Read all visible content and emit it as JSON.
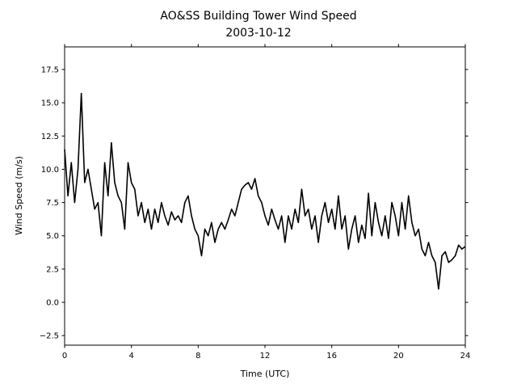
{
  "chart_data": {
    "type": "line",
    "title": "AO&SS Building Tower Wind Speed",
    "subtitle": "2003-10-12",
    "x_label": "Time (UTC)",
    "y_label": "Wind Speed (m/s)",
    "xlim": [
      0,
      24
    ],
    "xticks": [
      0,
      4,
      8,
      12,
      16,
      20,
      24
    ],
    "ylim": [
      -3.22,
      19.2
    ],
    "yticks": [
      {
        "value": -2.5,
        "label": "−2.5"
      },
      {
        "value": 0,
        "label": "0.0"
      },
      2.5,
      {
        "value": 5,
        "label": "5.0"
      },
      7.5,
      {
        "value": 10,
        "label": "10.0"
      },
      12.5,
      {
        "value": 15,
        "label": "15.0"
      },
      17.5
    ],
    "grid": false,
    "x": [
      0,
      0.2,
      0.4,
      0.6,
      0.8,
      1,
      1.2,
      1.4,
      1.6,
      1.8,
      2,
      2.2,
      2.4,
      2.6,
      2.8,
      3,
      3.2,
      3.4,
      3.6,
      3.8,
      4,
      4.2,
      4.4,
      4.6,
      4.8,
      5,
      5.2,
      5.4,
      5.6,
      5.8,
      6,
      6.2,
      6.4,
      6.6,
      6.8,
      7,
      7.2,
      7.4,
      7.6,
      7.8,
      8,
      8.2,
      8.4,
      8.6,
      8.8,
      9,
      9.2,
      9.4,
      9.6,
      9.8,
      10,
      10.2,
      10.4,
      10.6,
      10.8,
      11,
      11.2,
      11.4,
      11.6,
      11.8,
      12,
      12.2,
      12.4,
      12.6,
      12.8,
      13,
      13.2,
      13.4,
      13.6,
      13.8,
      14,
      14.2,
      14.4,
      14.6,
      14.8,
      15,
      15.2,
      15.4,
      15.6,
      15.8,
      16,
      16.2,
      16.4,
      16.6,
      16.8,
      17,
      17.2,
      17.4,
      17.6,
      17.8,
      18,
      18.2,
      18.4,
      18.6,
      18.8,
      19,
      19.2,
      19.4,
      19.6,
      19.8,
      20,
      20.2,
      20.4,
      20.6,
      20.8,
      21,
      21.2,
      21.4,
      21.6,
      21.8,
      22,
      22.2,
      22.4,
      22.6,
      22.8,
      23,
      23.2,
      23.4,
      23.6,
      23.8,
      24
    ],
    "series": [
      {
        "color": "#000000",
        "values": [
          11.5,
          8,
          10.5,
          7.5,
          10,
          15.7,
          9,
          10,
          8.5,
          7,
          7.5,
          5,
          10.5,
          8,
          12,
          9,
          8,
          7.5,
          5.5,
          10.5,
          9,
          8.5,
          6.5,
          7.5,
          6,
          7,
          5.5,
          7,
          6,
          7.5,
          6.5,
          5.8,
          6.8,
          6.2,
          6.5,
          6,
          7.5,
          8,
          6.5,
          5.5,
          5,
          3.5,
          5.5,
          5,
          6,
          4.5,
          5.5,
          6,
          5.5,
          6.2,
          7,
          6.5,
          7.5,
          8.5,
          8.8,
          9,
          8.5,
          9.3,
          8,
          7.5,
          6.5,
          5.8,
          7,
          6.2,
          5.5,
          6.5,
          4.5,
          6.5,
          5.5,
          7,
          6,
          8.5,
          6.5,
          7,
          5.5,
          6.5,
          4.5,
          6.5,
          7.5,
          6,
          7,
          5.5,
          8,
          5.5,
          6.5,
          4,
          5.5,
          6.5,
          4.5,
          5.8,
          4.8,
          8.2,
          5,
          7.5,
          6,
          5,
          6.5,
          4.8,
          7.5,
          6.5,
          5,
          7.5,
          5.5,
          8,
          6,
          5,
          5.5,
          4,
          3.5,
          4.5,
          3.5,
          3,
          1,
          3.5,
          3.8,
          3,
          3.2,
          3.5,
          4.3,
          4,
          4.2
        ]
      }
    ]
  }
}
